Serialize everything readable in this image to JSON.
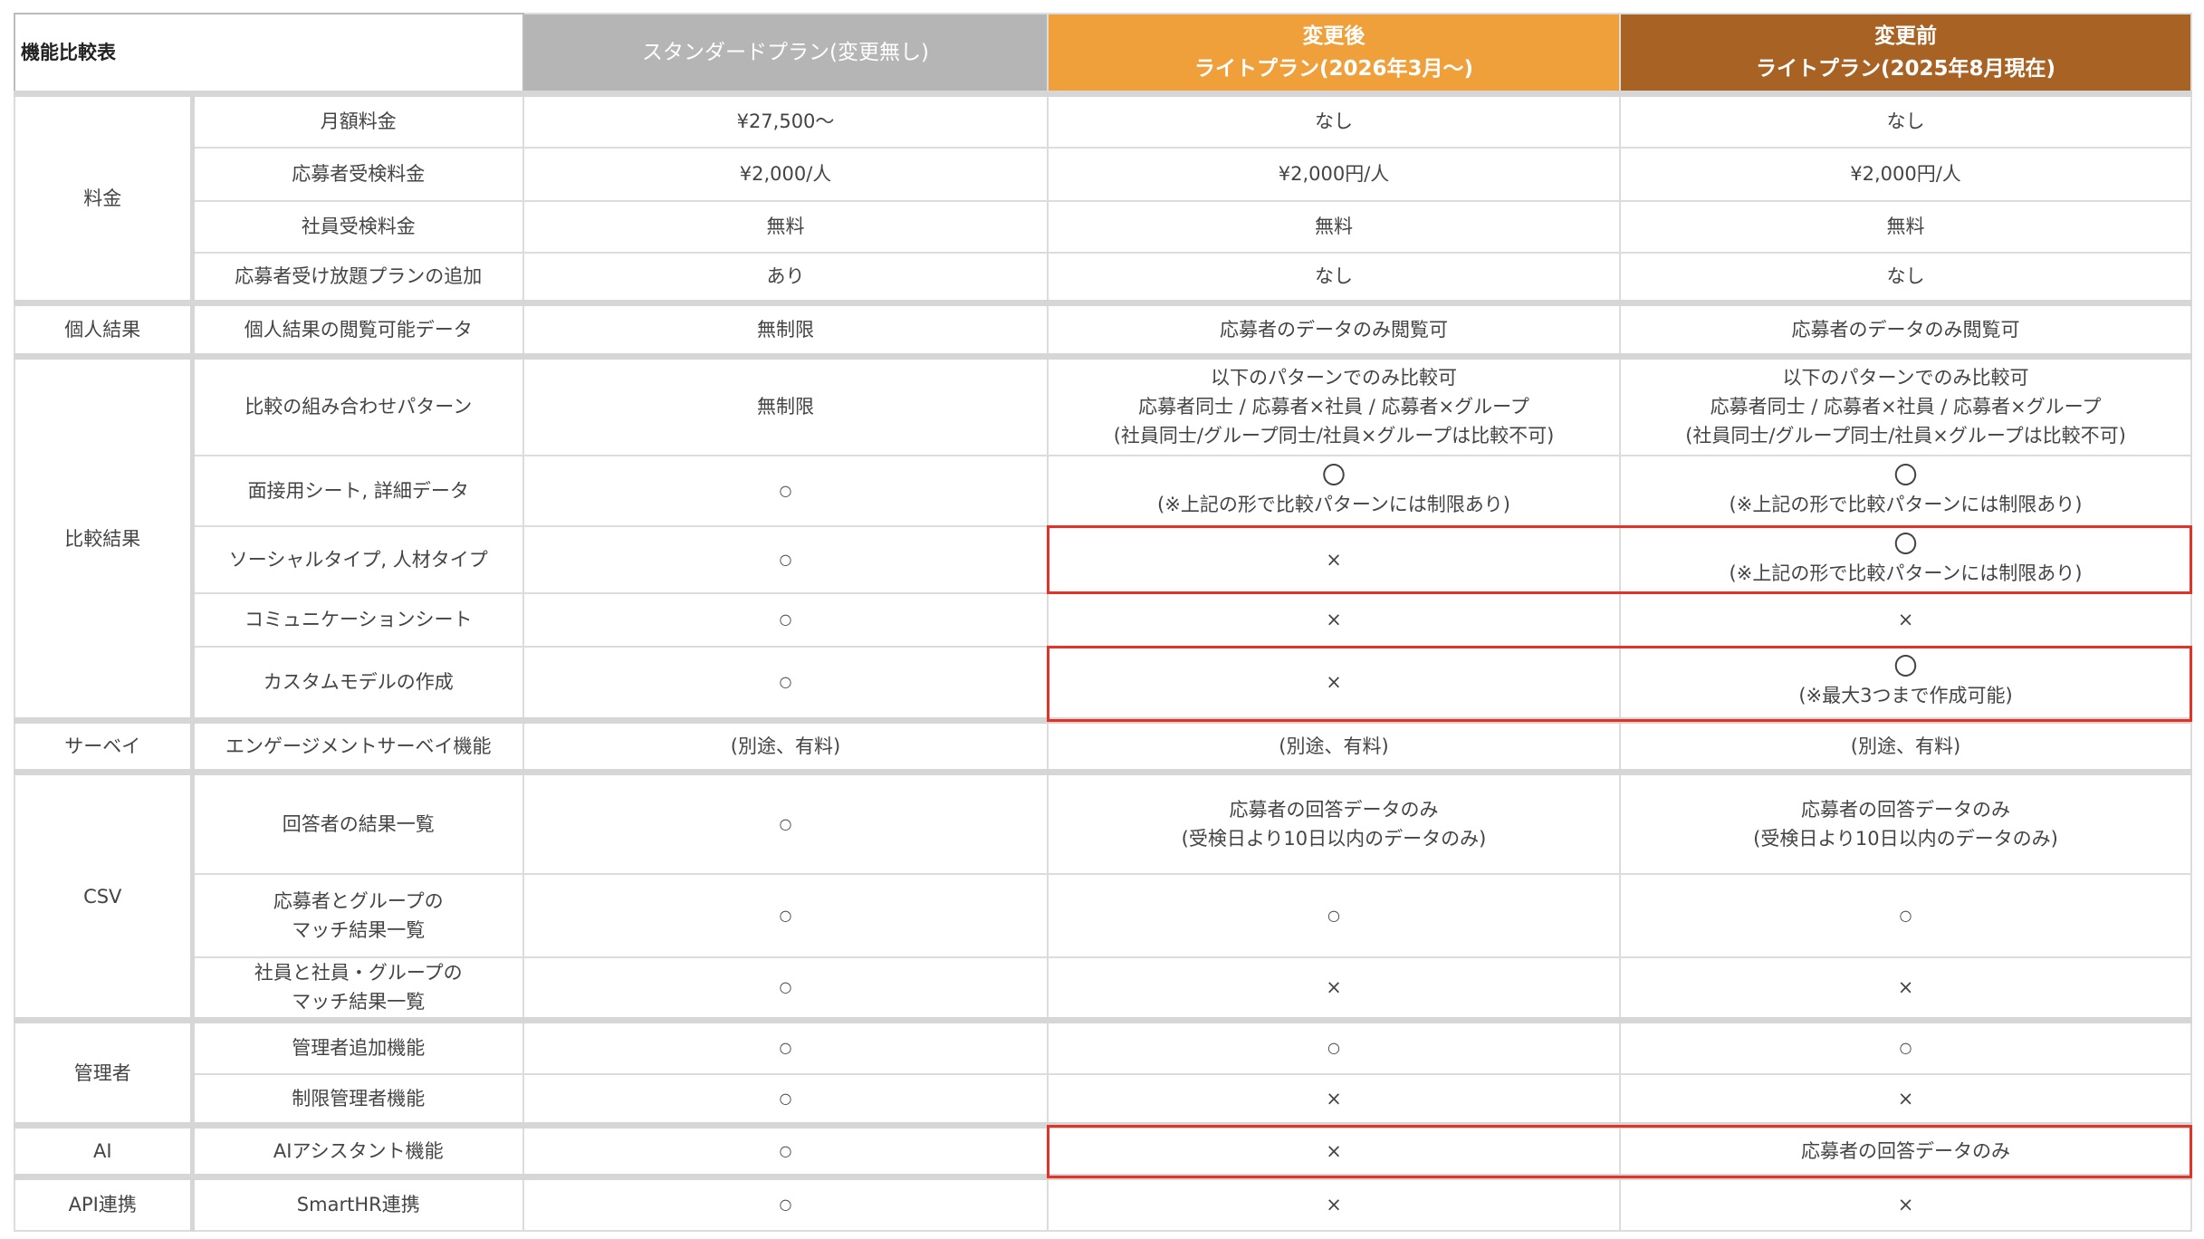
{
  "header": {
    "title": "機能比較表",
    "columns": [
      "スタンダードプラン(変更無し)",
      "変更後\nライトプラン(2026年3月〜)",
      "変更前\nライトプラン(2025年8月現在)"
    ]
  },
  "colors": {
    "standard": "#b5b5b5",
    "after": "#f0a03a",
    "before": "#a86224",
    "highlight": "#e53227"
  },
  "groups": [
    {
      "name": "料金",
      "rows": [
        {
          "feature": "月額料金",
          "values": [
            "¥27,500〜",
            "なし",
            "なし"
          ]
        },
        {
          "feature": "応募者受検料金",
          "values": [
            "¥2,000/人",
            "¥2,000円/人",
            "¥2,000円/人"
          ]
        },
        {
          "feature": "社員受検料金",
          "values": [
            "無料",
            "無料",
            "無料"
          ]
        },
        {
          "feature": "応募者受け放題プランの追加",
          "values": [
            "あり",
            "なし",
            "なし"
          ]
        }
      ]
    },
    {
      "name": "個人結果",
      "rows": [
        {
          "feature": "個人結果の閲覧可能データ",
          "values": [
            "無制限",
            "応募者のデータのみ閲覧可",
            "応募者のデータのみ閲覧可"
          ]
        }
      ]
    },
    {
      "name": "比較結果",
      "rows": [
        {
          "feature": "比較の組み合わせパターン",
          "values": [
            "無制限",
            "以下のパターンでのみ比較可\n応募者同士 / 応募者×社員 / 応募者×グループ\n(社員同士/グループ同士/社員×グループは比較不可)",
            "以下のパターンでのみ比較可\n応募者同士 / 応募者×社員 / 応募者×グループ\n(社員同士/グループ同士/社員×グループは比較不可)"
          ]
        },
        {
          "feature": "面接用シート, 詳細データ",
          "values": [
            "○",
            "〇\n(※上記の形で比較パターンには制限あり)",
            "〇\n(※上記の形で比較パターンには制限あり)"
          ]
        },
        {
          "feature": "ソーシャルタイプ, 人材タイプ",
          "values": [
            "○",
            "×",
            "〇\n(※上記の形で比較パターンには制限あり)"
          ],
          "highlight": true
        },
        {
          "feature": "コミュニケーションシート",
          "values": [
            "○",
            "×",
            "×"
          ]
        },
        {
          "feature": "カスタムモデルの作成",
          "values": [
            "○",
            "×",
            "〇\n(※最大3つまで作成可能)"
          ],
          "highlight": true
        }
      ]
    },
    {
      "name": "サーベイ",
      "rows": [
        {
          "feature": "エンゲージメントサーベイ機能",
          "values": [
            "(別途、有料)",
            "(別途、有料)",
            "(別途、有料)"
          ]
        }
      ]
    },
    {
      "name": "CSV",
      "rows": [
        {
          "feature": "回答者の結果一覧",
          "values": [
            "○",
            "応募者の回答データのみ\n(受検日より10日以内のデータのみ)",
            "応募者の回答データのみ\n(受検日より10日以内のデータのみ)"
          ]
        },
        {
          "feature": "応募者とグループの\nマッチ結果一覧",
          "values": [
            "○",
            "○",
            "○"
          ]
        },
        {
          "feature": "社員と社員・グループの\nマッチ結果一覧",
          "values": [
            "○",
            "×",
            "×"
          ]
        }
      ]
    },
    {
      "name": "管理者",
      "rows": [
        {
          "feature": "管理者追加機能",
          "values": [
            "○",
            "○",
            "○"
          ]
        },
        {
          "feature": "制限管理者機能",
          "values": [
            "○",
            "×",
            "×"
          ]
        }
      ]
    },
    {
      "name": "AI",
      "rows": [
        {
          "feature": "AIアシスタント機能",
          "values": [
            "○",
            "×",
            "応募者の回答データのみ"
          ],
          "highlight": true
        }
      ]
    },
    {
      "name": "API連携",
      "rows": [
        {
          "feature": "SmartHR連携",
          "values": [
            "○",
            "×",
            "×"
          ]
        }
      ]
    }
  ]
}
